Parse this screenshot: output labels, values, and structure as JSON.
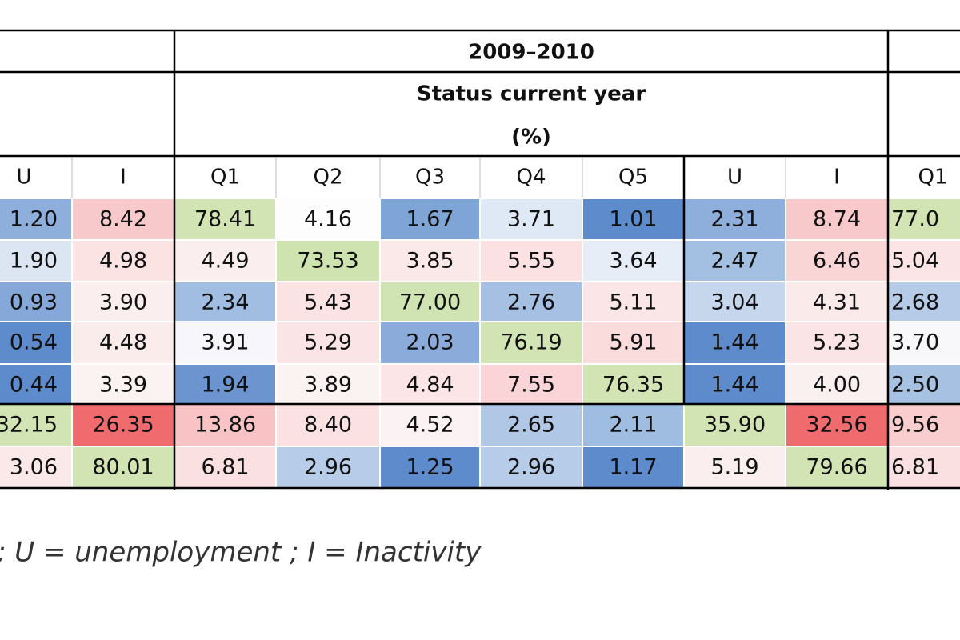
{
  "header": {
    "period": "2009–2010",
    "subtitle": "Status current year",
    "unit": "(%)"
  },
  "table": {
    "columns": [
      "U",
      "I",
      "Q1",
      "Q2",
      "Q3",
      "Q4",
      "Q5",
      "U",
      "I",
      "Q1"
    ],
    "rows": [
      [
        "1.20",
        "8.42",
        "78.41",
        "4.16",
        "1.67",
        "3.71",
        "1.01",
        "2.31",
        "8.74",
        "77.0"
      ],
      [
        "1.90",
        "4.98",
        "4.49",
        "73.53",
        "3.85",
        "5.55",
        "3.64",
        "2.47",
        "6.46",
        "5.04"
      ],
      [
        "0.93",
        "3.90",
        "2.34",
        "5.43",
        "77.00",
        "2.76",
        "5.11",
        "3.04",
        "4.31",
        "2.68"
      ],
      [
        "0.54",
        "4.48",
        "3.91",
        "5.29",
        "2.03",
        "76.19",
        "5.91",
        "1.44",
        "5.23",
        "3.70"
      ],
      [
        "0.44",
        "3.39",
        "1.94",
        "3.89",
        "4.84",
        "7.55",
        "76.35",
        "1.44",
        "4.00",
        "2.50"
      ],
      [
        "32.15",
        "26.35",
        "13.86",
        "8.40",
        "4.52",
        "2.65",
        "2.11",
        "35.90",
        "32.56",
        "9.56"
      ],
      [
        "3.06",
        "80.01",
        "6.81",
        "2.96",
        "1.25",
        "2.96",
        "1.17",
        "5.19",
        "79.66",
        "6.81"
      ]
    ]
  },
  "footnote": "; U = unemployment ; I = Inactivity"
}
